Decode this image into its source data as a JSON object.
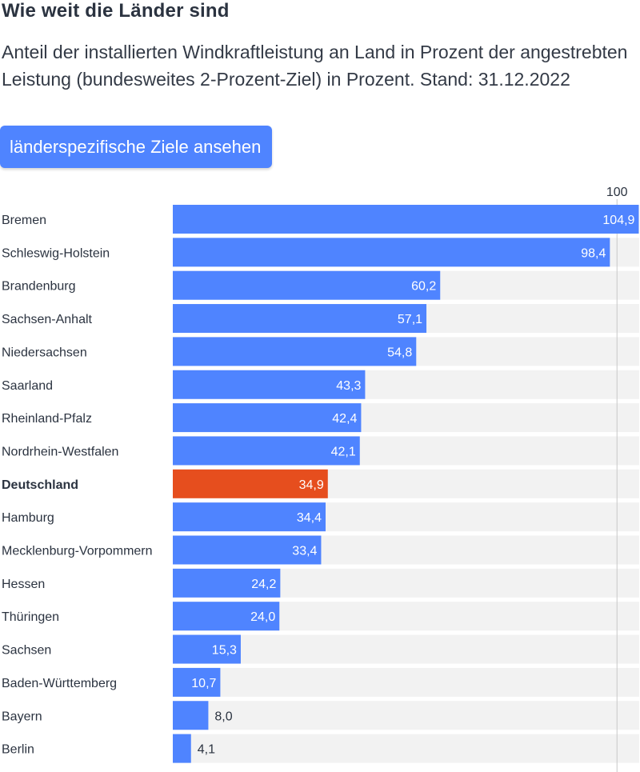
{
  "title": "Wie weit die Länder sind",
  "subtitle": "Anteil der installierten Windkraftleistung an Land in Prozent der angestrebten Leistung (bundesweites 2-Prozent-Ziel) in Prozent. Stand: 31.12.2022",
  "cta_label": "länderspezifische Ziele ansehen",
  "colors": {
    "bar": "#4f84ff",
    "highlight": "#e64e1e",
    "track": "#f2f2f2",
    "reference_line": "#c8c8c8"
  },
  "chart_data": {
    "type": "bar",
    "orientation": "horizontal",
    "reference_line": {
      "value": 100,
      "label": "100"
    },
    "xlim": [
      0,
      105
    ],
    "categories": [
      "Bremen",
      "Schleswig-Holstein",
      "Brandenburg",
      "Sachsen-Anhalt",
      "Niedersachsen",
      "Saarland",
      "Rheinland-Pfalz",
      "Nordrhein-Westfalen",
      "Deutschland",
      "Hamburg",
      "Mecklenburg-Vorpommern",
      "Hessen",
      "Thüringen",
      "Sachsen",
      "Baden-Württemberg",
      "Bayern",
      "Berlin"
    ],
    "values": [
      104.9,
      98.4,
      60.2,
      57.1,
      54.8,
      43.3,
      42.4,
      42.1,
      34.9,
      34.4,
      33.4,
      24.2,
      24.0,
      15.3,
      10.7,
      8.0,
      4.1
    ],
    "value_labels": [
      "104,9",
      "98,4",
      "60,2",
      "57,1",
      "54,8",
      "43,3",
      "42,4",
      "42,1",
      "34,9",
      "34,4",
      "33,4",
      "24,2",
      "24,0",
      "15,3",
      "10,7",
      "8,0",
      "4,1"
    ],
    "highlight": "Deutschland"
  }
}
